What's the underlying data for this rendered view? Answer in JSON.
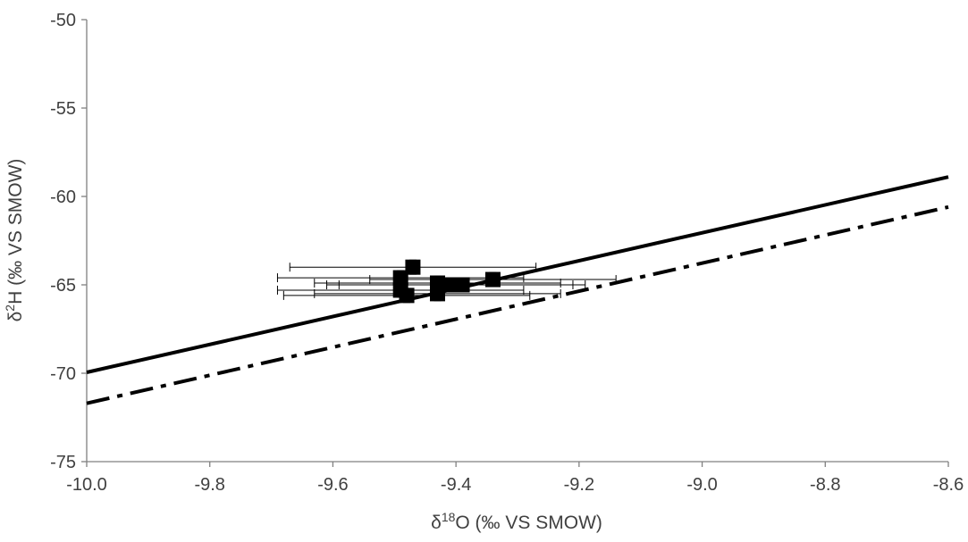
{
  "chart_data": {
    "type": "scatter",
    "title": "",
    "xlabel": {
      "prefix": "δ",
      "superscript": "18",
      "suffix": "O (‰ VS SMOW)"
    },
    "ylabel": {
      "prefix": "δ",
      "superscript": "2",
      "suffix": "H (‰ VS SMOW)"
    },
    "xlim": [
      -10.0,
      -8.6
    ],
    "ylim": [
      -75,
      -50
    ],
    "xticks": [
      "-10.0",
      "-9.8",
      "-9.6",
      "-9.4",
      "-9.2",
      "-9.0",
      "-8.8",
      "-8.6"
    ],
    "yticks": [
      "-50",
      "-55",
      "-60",
      "-65",
      "-70",
      "-75"
    ],
    "grid": false,
    "legend": "none",
    "points": [
      {
        "x": -9.47,
        "y": -64.0,
        "xerr": 0.2
      },
      {
        "x": -9.34,
        "y": -64.7,
        "xerr": 0.2
      },
      {
        "x": -9.49,
        "y": -64.6,
        "xerr": 0.2
      },
      {
        "x": -9.43,
        "y": -64.9,
        "xerr": 0.2
      },
      {
        "x": -9.41,
        "y": -65.0,
        "xerr": 0.2
      },
      {
        "x": -9.39,
        "y": -65.0,
        "xerr": 0.2
      },
      {
        "x": -9.49,
        "y": -65.3,
        "xerr": 0.2
      },
      {
        "x": -9.48,
        "y": -65.6,
        "xerr": 0.2
      },
      {
        "x": -9.43,
        "y": -65.5,
        "xerr": 0.2
      }
    ],
    "lines": [
      {
        "style": "solid",
        "x": [
          -10.0,
          -8.6
        ],
        "y": [
          -69.95,
          -58.9
        ]
      },
      {
        "style": "dashdot",
        "x": [
          -10.0,
          -8.6
        ],
        "y": [
          -71.7,
          -60.6
        ]
      }
    ]
  },
  "colors": {
    "axis": "#808080",
    "text": "#404040",
    "series": "#000000"
  }
}
